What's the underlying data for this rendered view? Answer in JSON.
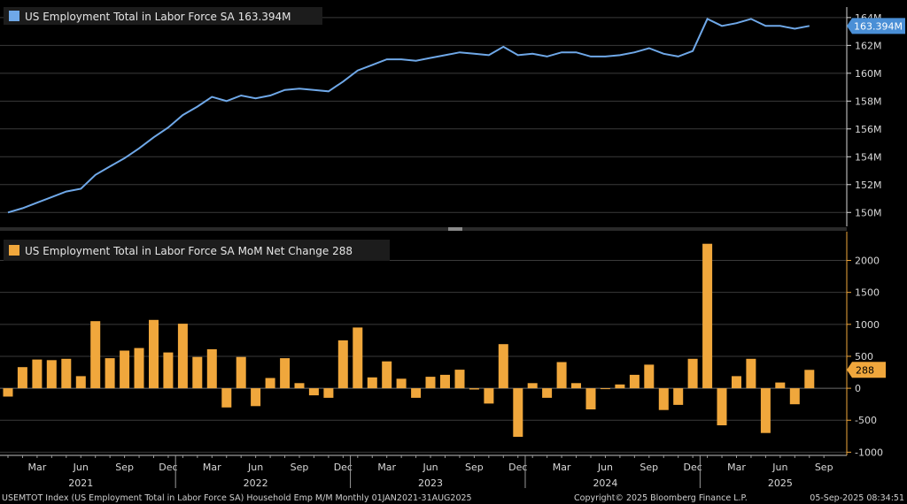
{
  "chart_data": [
    {
      "type": "line",
      "legend": "US Employment Total in Labor Force SA 163.394M",
      "last_value_label": "163.394M",
      "color": "#6fa8e8",
      "ylim": [
        149,
        164.5
      ],
      "yticks": [
        150,
        152,
        154,
        156,
        158,
        160,
        162,
        164
      ],
      "ytick_labels": [
        "150M",
        "152M",
        "154M",
        "156M",
        "158M",
        "160M",
        "162M",
        "164M"
      ],
      "grid": true,
      "x": [
        "2021-01",
        "2021-02",
        "2021-03",
        "2021-04",
        "2021-05",
        "2021-06",
        "2021-07",
        "2021-08",
        "2021-09",
        "2021-10",
        "2021-11",
        "2021-12",
        "2022-01",
        "2022-02",
        "2022-03",
        "2022-04",
        "2022-05",
        "2022-06",
        "2022-07",
        "2022-08",
        "2022-09",
        "2022-10",
        "2022-11",
        "2022-12",
        "2023-01",
        "2023-02",
        "2023-03",
        "2023-04",
        "2023-05",
        "2023-06",
        "2023-07",
        "2023-08",
        "2023-09",
        "2023-10",
        "2023-11",
        "2023-12",
        "2024-01",
        "2024-02",
        "2024-03",
        "2024-04",
        "2024-05",
        "2024-06",
        "2024-07",
        "2024-08",
        "2024-09",
        "2024-10",
        "2024-11",
        "2024-12",
        "2025-01",
        "2025-02",
        "2025-03",
        "2025-04",
        "2025-05",
        "2025-06",
        "2025-07",
        "2025-08"
      ],
      "values": [
        150.0,
        150.3,
        150.7,
        151.1,
        151.5,
        151.7,
        152.7,
        153.3,
        153.9,
        154.6,
        155.4,
        156.1,
        157.0,
        157.6,
        158.3,
        158.0,
        158.4,
        158.2,
        158.4,
        158.8,
        158.9,
        158.8,
        158.7,
        159.4,
        160.2,
        160.6,
        161.0,
        161.0,
        160.9,
        161.1,
        161.3,
        161.5,
        161.4,
        161.3,
        161.9,
        161.3,
        161.4,
        161.2,
        161.5,
        161.5,
        161.2,
        161.2,
        161.3,
        161.5,
        161.8,
        161.4,
        161.2,
        161.6,
        163.9,
        163.4,
        163.6,
        163.9,
        163.4,
        163.4,
        163.2,
        163.4
      ]
    },
    {
      "type": "bar",
      "legend": "US Employment Total in Labor Force SA MoM Net Change 288",
      "last_value_label": "288",
      "color": "#f0a73c",
      "ylim": [
        -1050,
        2450
      ],
      "yticks": [
        -1000,
        -500,
        0,
        500,
        1000,
        1500,
        2000
      ],
      "ytick_labels": [
        "-1000",
        "-500",
        "0",
        "500",
        "1000",
        "1500",
        "2000"
      ],
      "grid": true,
      "values": [
        -130,
        330,
        450,
        440,
        460,
        190,
        1050,
        470,
        590,
        630,
        1070,
        560,
        1010,
        490,
        610,
        -300,
        490,
        -280,
        160,
        470,
        80,
        -110,
        -150,
        750,
        950,
        170,
        420,
        150,
        -150,
        180,
        210,
        290,
        -20,
        -240,
        690,
        -760,
        80,
        -150,
        410,
        80,
        -330,
        0,
        60,
        210,
        370,
        -340,
        -260,
        460,
        2260,
        -580,
        190,
        460,
        -700,
        90,
        -250,
        288
      ]
    }
  ],
  "x_axis": {
    "month_labels": [
      "Mar",
      "Jun",
      "Sep",
      "Dec",
      "Mar",
      "Jun",
      "Sep",
      "Dec",
      "Mar",
      "Jun",
      "Sep",
      "Dec",
      "Mar",
      "Jun",
      "Sep",
      "Dec",
      "Mar",
      "Jun",
      "Sep"
    ],
    "year_labels": [
      "2021",
      "2022",
      "2023",
      "2024",
      "2025"
    ]
  },
  "footer": {
    "left": "USEMTOT Index (US Employment Total in Labor Force SA) Household Emp M/M  Monthly 01JAN2021-31AUG2025",
    "middle": "Copyright© 2025 Bloomberg Finance L.P.",
    "right": "05-Sep-2025 08:34:51"
  }
}
